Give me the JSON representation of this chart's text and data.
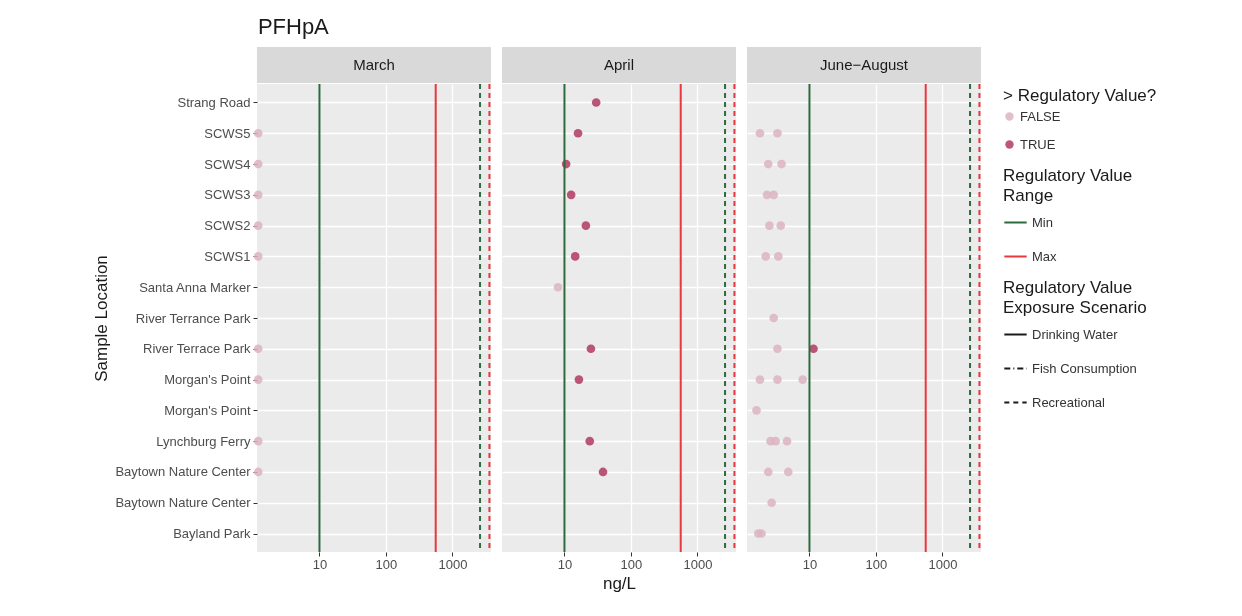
{
  "chart_data": [
    {
      "type": "scatter",
      "title": "PFHpA",
      "subtitle": "March",
      "ylabel": "Sample Location",
      "orientation": "horizontal",
      "log": "x",
      "grid": true,
      "marker": "circle",
      "categories": [
        "Strang Road",
        "SCWS5",
        "SCWS4",
        "SCWS3",
        "SCWS2",
        "SCWS1",
        "Santa Anna Marker",
        "River Terrance Park",
        "River Terrace Park",
        "Morgan's Point ",
        "Morgan's Point",
        "Lynchburg Ferry",
        "Baytown Nature Center ",
        "Baytown Nature Center",
        "Bayland Park"
      ],
      "xlim": [
        1.15,
        3800
      ],
      "xticks": [
        10,
        100,
        1000
      ],
      "series": [
        {
          "color": "#dcb4c0",
          "values": [
            null,
            1.2,
            1.2,
            1.2,
            1.2,
            1.2,
            null,
            null,
            1.2,
            1.2,
            null,
            1.2,
            1.2,
            null,
            null
          ]
        }
      ],
      "ref_lines": [
        {
          "axis": "x",
          "value": 10,
          "color": "#2d6a3f",
          "line_style": "solid"
        },
        {
          "axis": "x",
          "value": 560,
          "color": "#e8383d",
          "line_style": "solid"
        },
        {
          "axis": "x",
          "value": 2600,
          "color": "#2d6a3f",
          "line_style": "dashed"
        },
        {
          "axis": "x",
          "value": 3600,
          "color": "#e8383d",
          "line_style": "dashed"
        }
      ]
    },
    {
      "type": "scatter",
      "subtitle": "April",
      "xlabel": "ng/L",
      "orientation": "horizontal",
      "log": "x",
      "grid": true,
      "marker": "circle",
      "tick_labels": "x",
      "categories": [
        "Strang Road",
        "SCWS5",
        "SCWS4",
        "SCWS3",
        "SCWS2",
        "SCWS1",
        "Santa Anna Marker",
        "River Terrance Park",
        "River Terrace Park",
        "Morgan's Point ",
        "Morgan's Point",
        "Lynchburg Ferry",
        "Baytown Nature Center ",
        "Baytown Nature Center",
        "Bayland Park"
      ],
      "xlim": [
        1.15,
        3800
      ],
      "xticks": [
        10,
        100,
        1000
      ],
      "series": [
        {
          "color": "#dcb4c0",
          "values": [
            null,
            null,
            null,
            null,
            null,
            null,
            8,
            null,
            null,
            null,
            null,
            null,
            null,
            null,
            null
          ]
        },
        {
          "color": "#b03a64",
          "values": [
            30,
            16,
            10.6,
            12.6,
            21,
            14.5,
            null,
            null,
            25,
            16.5,
            null,
            24,
            38,
            null,
            null
          ]
        }
      ],
      "ref_lines": [
        {
          "axis": "x",
          "value": 10,
          "color": "#2d6a3f",
          "line_style": "solid"
        },
        {
          "axis": "x",
          "value": 560,
          "color": "#e8383d",
          "line_style": "solid"
        },
        {
          "axis": "x",
          "value": 2600,
          "color": "#2d6a3f",
          "line_style": "dashed"
        },
        {
          "axis": "x",
          "value": 3600,
          "color": "#e8383d",
          "line_style": "dashed"
        }
      ]
    },
    {
      "type": "scatter",
      "subtitle": "June−August",
      "orientation": "horizontal",
      "log": "x",
      "grid": true,
      "marker": "circle",
      "tick_labels": "x",
      "legend": "right",
      "legend_title": "> Regulatory Value?",
      "annotations": [
        "Regulatory Value Range",
        "Min",
        "Max",
        "Regulatory Value Exposure Scenario",
        "Drinking Water",
        "Fish Consumption",
        "Recreational"
      ],
      "categories": [
        "Strang Road",
        "SCWS5",
        "SCWS4",
        "SCWS3",
        "SCWS2",
        "SCWS1",
        "Santa Anna Marker",
        "River Terrance Park",
        "River Terrace Park",
        "Morgan's Point ",
        "Morgan's Point",
        "Lynchburg Ferry",
        "Baytown Nature Center ",
        "Baytown Nature Center",
        "Bayland Park"
      ],
      "xlim": [
        1.15,
        3800
      ],
      "xticks": [
        10,
        100,
        1000
      ],
      "series": [
        {
          "name": "FALSE",
          "color": "#dcb4c0",
          "x": [
            "SCWS5",
            "SCWS5",
            "SCWS4",
            "SCWS4",
            "SCWS3",
            "SCWS3",
            "SCWS2",
            "SCWS2",
            "SCWS1",
            "SCWS1",
            "River Terrance Park",
            "River Terrace Park",
            "Morgan's Point ",
            "Morgan's Point ",
            "Morgan's Point ",
            "Morgan's Point",
            "Lynchburg Ferry",
            "Lynchburg Ferry",
            "Lynchburg Ferry",
            "Baytown Nature Center ",
            "Baytown Nature Center ",
            "Baytown Nature Center",
            "Bayland Park",
            "Bayland Park"
          ],
          "values": [
            1.8,
            3.3,
            2.4,
            3.8,
            2.3,
            2.9,
            2.5,
            3.7,
            2.2,
            3.4,
            2.9,
            3.3,
            1.8,
            3.3,
            7.9,
            1.6,
            2.6,
            3.1,
            4.6,
            2.4,
            4.8,
            2.7,
            1.7,
            1.9
          ]
        },
        {
          "name": "TRUE",
          "color": "#b03a64",
          "values": [
            null,
            null,
            null,
            null,
            null,
            null,
            null,
            null,
            11.5,
            null,
            null,
            null,
            null,
            null,
            null
          ]
        }
      ],
      "ref_lines": [
        {
          "axis": "x",
          "value": 10,
          "color": "#2d6a3f",
          "line_style": "solid"
        },
        {
          "axis": "x",
          "value": 560,
          "color": "#e8383d",
          "line_style": "solid"
        },
        {
          "axis": "x",
          "value": 2600,
          "color": "#2d6a3f",
          "line_style": "dashed"
        },
        {
          "axis": "x",
          "value": 3600,
          "color": "#e8383d",
          "line_style": "dashed"
        }
      ]
    }
  ]
}
